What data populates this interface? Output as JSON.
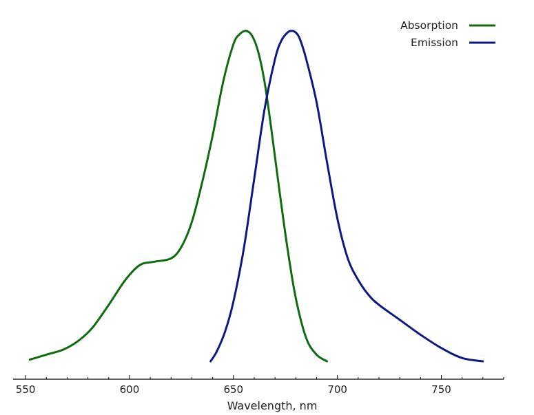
{
  "chart_data": {
    "type": "line",
    "xlabel": "Wavelength, nm",
    "ylabel": "",
    "xlim": [
      544,
      780
    ],
    "ylim": [
      0,
      1.03
    ],
    "x_ticks": [
      550,
      600,
      650,
      700,
      750
    ],
    "x_tick_labels": [
      "550",
      "600",
      "650",
      "700",
      "750"
    ],
    "show_y_axis": false,
    "grid": false,
    "legend_position": "top-right",
    "series": [
      {
        "name": "Absorption",
        "color": "#0e6b0e",
        "x": [
          552,
          560,
          568,
          575,
          582,
          590,
          598,
          605,
          612,
          620,
          625,
          630,
          635,
          640,
          645,
          650,
          653,
          656,
          659,
          662,
          665,
          668,
          672,
          676,
          680,
          685,
          690,
          695
        ],
        "y": [
          0.005,
          0.02,
          0.035,
          0.06,
          0.1,
          0.17,
          0.245,
          0.29,
          0.3,
          0.31,
          0.345,
          0.42,
          0.54,
          0.68,
          0.84,
          0.955,
          0.985,
          0.995,
          0.98,
          0.93,
          0.84,
          0.71,
          0.52,
          0.34,
          0.19,
          0.07,
          0.02,
          0.0
        ]
      },
      {
        "name": "Emission",
        "color": "#0d1880",
        "x": [
          639,
          642,
          646,
          650,
          655,
          660,
          665,
          670,
          673,
          676,
          678,
          680,
          682,
          685,
          690,
          695,
          700,
          705,
          710,
          715,
          720,
          730,
          740,
          750,
          760,
          770
        ],
        "y": [
          0.0,
          0.03,
          0.09,
          0.18,
          0.34,
          0.55,
          0.76,
          0.91,
          0.965,
          0.99,
          0.995,
          0.99,
          0.97,
          0.91,
          0.78,
          0.6,
          0.43,
          0.31,
          0.245,
          0.2,
          0.17,
          0.125,
          0.08,
          0.04,
          0.01,
          0.0
        ]
      }
    ]
  }
}
